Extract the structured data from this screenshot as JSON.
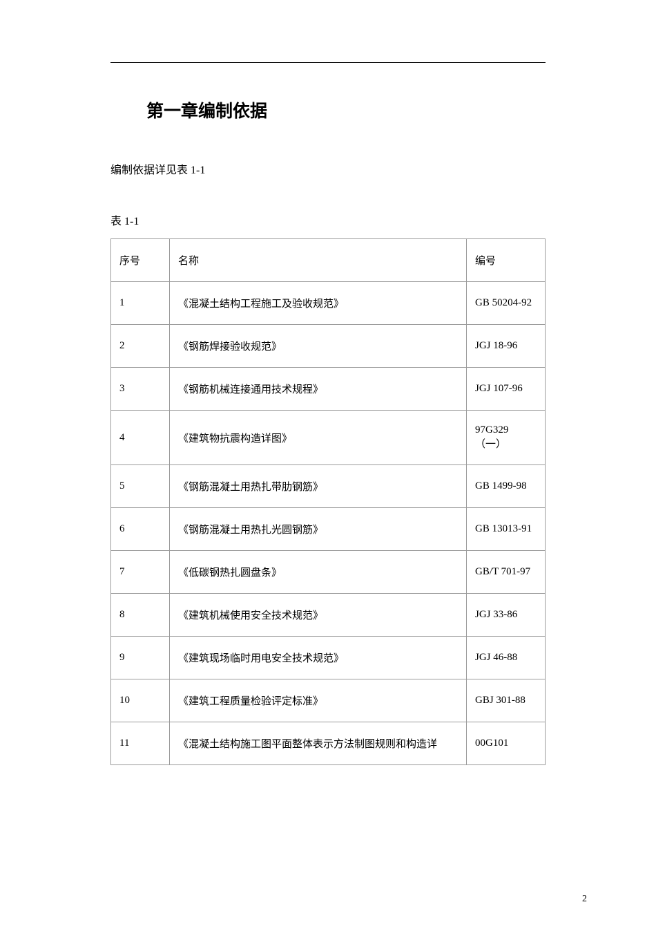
{
  "chapter_title": "第一章编制依据",
  "intro_text": "编制依据详见表 1-1",
  "table_label": "表 1-1",
  "table": {
    "columns": [
      "序号",
      "名称",
      "编号"
    ],
    "rows": [
      [
        "1",
        "《混凝土结构工程施工及验收规范》",
        "GB 50204-92"
      ],
      [
        "2",
        "《钢筋焊接验收规范》",
        "JGJ 18-96"
      ],
      [
        "3",
        "《钢筋机械连接通用技术规程》",
        "JGJ 107-96"
      ],
      [
        "4",
        "《建筑物抗震构造详图》",
        "97G329 （一）"
      ],
      [
        "5",
        "《钢筋混凝土用热扎带肋钢筋》",
        "GB 1499-98"
      ],
      [
        "6",
        "《钢筋混凝土用热扎光圆钢筋》",
        "GB 13013-91"
      ],
      [
        "7",
        "《低碳钢热扎圆盘条》",
        "GB/T 701-97"
      ],
      [
        "8",
        "《建筑机械使用安全技术规范》",
        "JGJ 33-86"
      ],
      [
        "9",
        "《建筑现场临时用电安全技术规范》",
        "JGJ 46-88"
      ],
      [
        "10",
        "《建筑工程质量检验评定标准》",
        "GBJ 301-88"
      ],
      [
        "11",
        "《混凝土结构施工图平面整体表示方法制图规则和构造详",
        "00G101"
      ]
    ]
  },
  "page_number": "2"
}
